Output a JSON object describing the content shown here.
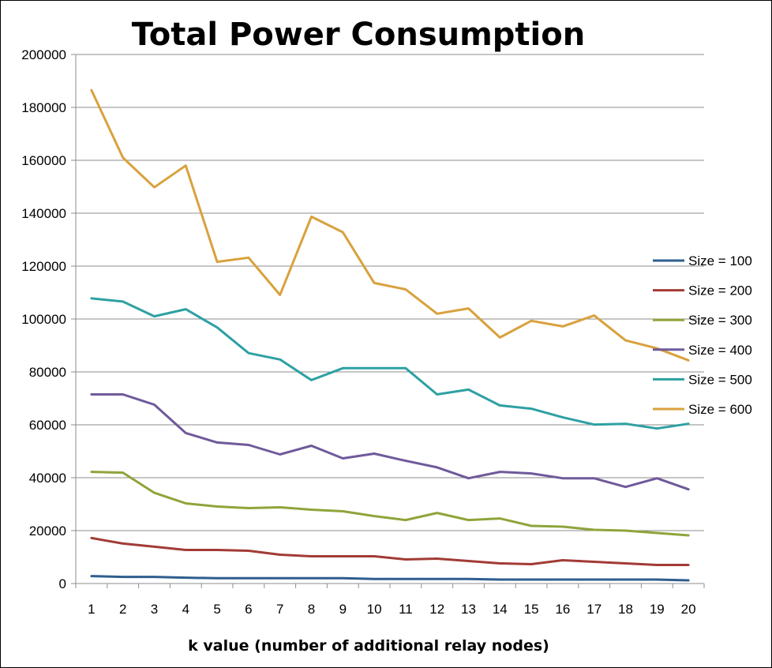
{
  "chart_data": {
    "type": "line",
    "title": "Total Power Consumption",
    "xlabel": "k value (number of additional relay nodes)",
    "ylabel": "",
    "x": [
      1,
      2,
      3,
      4,
      5,
      6,
      7,
      8,
      9,
      10,
      11,
      12,
      13,
      14,
      15,
      16,
      17,
      18,
      19,
      20
    ],
    "ylim": [
      0,
      200000
    ],
    "yticks": [
      0,
      20000,
      40000,
      60000,
      80000,
      100000,
      120000,
      140000,
      160000,
      180000,
      200000
    ],
    "grid": "horizontal",
    "legend": "right",
    "series": [
      {
        "name": "Size = 100",
        "color": "#2E5E8E",
        "values": [
          2800,
          2500,
          2500,
          2200,
          2000,
          2000,
          2000,
          2000,
          2000,
          1700,
          1700,
          1700,
          1700,
          1500,
          1500,
          1500,
          1500,
          1500,
          1500,
          1200
        ]
      },
      {
        "name": "Size = 200",
        "color": "#A23B36",
        "values": [
          17200,
          15100,
          13900,
          12700,
          12700,
          12400,
          10900,
          10300,
          10300,
          10300,
          9100,
          9400,
          8500,
          7600,
          7300,
          8800,
          8200,
          7600,
          7000,
          7000
        ]
      },
      {
        "name": "Size = 300",
        "color": "#8FA43A",
        "values": [
          42200,
          41900,
          34300,
          30300,
          29100,
          28500,
          28800,
          27900,
          27300,
          25500,
          24000,
          26700,
          24000,
          24600,
          21800,
          21500,
          20300,
          20000,
          19100,
          18200
        ]
      },
      {
        "name": "Size = 400",
        "color": "#6F5A9A",
        "values": [
          71500,
          71500,
          67600,
          56900,
          53300,
          52400,
          48800,
          52100,
          47300,
          49100,
          46400,
          43900,
          39800,
          42200,
          41600,
          39800,
          39800,
          36500,
          39800,
          35600
        ]
      },
      {
        "name": "Size = 500",
        "color": "#2EA0A3",
        "values": [
          107800,
          106600,
          101000,
          103700,
          96800,
          87100,
          84700,
          76900,
          81400,
          81400,
          81400,
          71500,
          73300,
          67300,
          66100,
          62800,
          60100,
          60400,
          58600,
          60400
        ]
      },
      {
        "name": "Size = 600",
        "color": "#D9A13D",
        "values": [
          186500,
          161000,
          149800,
          158000,
          121600,
          123200,
          109100,
          138700,
          132800,
          113600,
          111200,
          102000,
          104000,
          93000,
          99300,
          97200,
          101300,
          91900,
          88900,
          84400
        ]
      }
    ]
  }
}
